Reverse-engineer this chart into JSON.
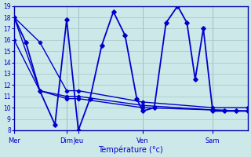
{
  "title": "Température (°c)",
  "background_color": "#cce8e8",
  "grid_color": "#aacccc",
  "line_color": "#0000cc",
  "ylim": [
    8,
    19
  ],
  "yticks": [
    8,
    9,
    10,
    11,
    12,
    13,
    14,
    15,
    16,
    17,
    18,
    19
  ],
  "day_labels": [
    "Mer",
    "Dim",
    "Jeu",
    "Ven",
    "Sam"
  ],
  "day_x": [
    0.0,
    4.5,
    5.5,
    11.0,
    17.0
  ],
  "vline_x": [
    0.0,
    4.5,
    5.5,
    11.0,
    17.0
  ],
  "xlim": [
    0,
    20
  ],
  "line1_x": [
    0,
    1.0,
    2.2,
    3.5,
    4.5,
    5.5,
    6.5,
    7.5,
    8.5,
    9.5,
    10.5,
    11.0,
    12.0,
    13.0,
    14.0,
    14.8,
    15.5,
    16.2,
    17.0,
    18.0,
    19.0,
    20.0
  ],
  "line1_y": [
    18.0,
    15.8,
    11.5,
    8.5,
    17.8,
    8.0,
    10.8,
    15.5,
    18.5,
    16.4,
    10.8,
    9.7,
    10.0,
    17.5,
    19.0,
    17.5,
    12.5,
    17.0,
    9.7,
    9.7,
    9.7,
    9.7
  ],
  "line2_x": [
    0,
    2.2,
    4.5,
    5.5,
    11.0,
    17.0,
    20.0
  ],
  "line2_y": [
    18.0,
    15.8,
    11.5,
    11.5,
    10.5,
    10.0,
    10.0
  ],
  "line3_x": [
    0,
    2.2,
    4.5,
    5.5,
    11.0,
    17.0,
    20.0
  ],
  "line3_y": [
    16.0,
    11.5,
    11.0,
    11.0,
    10.2,
    9.8,
    9.7
  ],
  "line4_x": [
    0,
    2.2,
    4.5,
    5.5,
    11.0,
    17.0,
    20.0
  ],
  "line4_y": [
    18.0,
    11.5,
    10.8,
    10.8,
    10.0,
    9.8,
    9.7
  ]
}
